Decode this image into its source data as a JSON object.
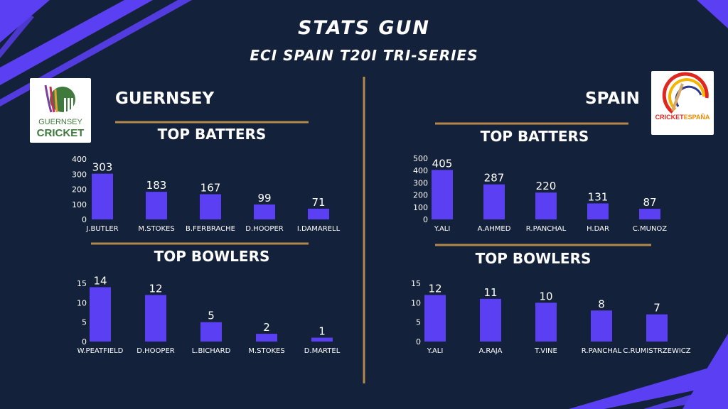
{
  "header": {
    "title": "STATS GUN",
    "subtitle": "ECI SPAIN T20I TRI-SERIES"
  },
  "colors": {
    "background": "#13213a",
    "bar": "#5b3ff2",
    "divider": "#b3894b",
    "accent_stripe": "#5b3ff2"
  },
  "logos": {
    "guernsey": {
      "line1": "GUERNSEY",
      "line2": "CRICKET"
    },
    "spain": {
      "text_red": "CRICKET",
      "text_orange": "ESPAÑA"
    }
  },
  "teams": {
    "guernsey": {
      "name": "GUERNSEY",
      "batters_heading": "TOP BATTERS",
      "bowlers_heading": "TOP BOWLERS"
    },
    "spain": {
      "name": "SPAIN",
      "batters_heading": "TOP BATTERS",
      "bowlers_heading": "TOP BOWLERS"
    }
  },
  "chart_data": [
    {
      "type": "bar",
      "team": "GUERNSEY",
      "title": "TOP BATTERS",
      "categories": [
        "J.BUTLER",
        "M.STOKES",
        "B.FERBRACHE",
        "D.HOOPER",
        "I.DAMARELL"
      ],
      "values": [
        303,
        183,
        167,
        99,
        71
      ],
      "yticks": [
        0,
        100,
        200,
        300,
        400
      ],
      "ylim": [
        0,
        400
      ],
      "grid": false
    },
    {
      "type": "bar",
      "team": "GUERNSEY",
      "title": "TOP BOWLERS",
      "categories": [
        "W.PEATFIELD",
        "D.HOOPER",
        "L.BICHARD",
        "M.STOKES",
        "D.MARTEL"
      ],
      "values": [
        14,
        12,
        5,
        2,
        1
      ],
      "yticks": [
        0,
        5,
        10,
        15
      ],
      "ylim": [
        0,
        15
      ],
      "grid": false
    },
    {
      "type": "bar",
      "team": "SPAIN",
      "title": "TOP BATTERS",
      "categories": [
        "Y.ALI",
        "A.AHMED",
        "R.PANCHAL",
        "H.DAR",
        "C.MUNOZ"
      ],
      "values": [
        405,
        287,
        220,
        131,
        87
      ],
      "yticks": [
        0,
        100,
        200,
        300,
        400,
        500
      ],
      "ylim": [
        0,
        500
      ],
      "grid": false
    },
    {
      "type": "bar",
      "team": "SPAIN",
      "title": "TOP BOWLERS",
      "categories": [
        "Y.ALI",
        "A.RAJA",
        "T.VINE",
        "R.PANCHAL",
        "C.RUMISTRZEWICZ"
      ],
      "values": [
        12,
        11,
        10,
        8,
        7
      ],
      "yticks": [
        0,
        5,
        10,
        15
      ],
      "ylim": [
        0,
        15
      ],
      "grid": false
    }
  ]
}
